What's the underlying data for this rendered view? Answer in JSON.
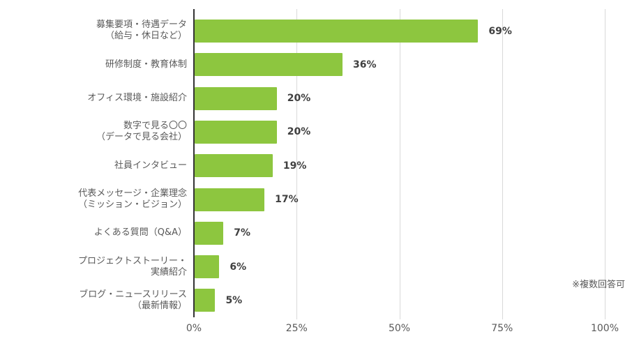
{
  "chart_data": {
    "type": "bar",
    "orientation": "horizontal",
    "categories": [
      "募集要項・待遇データ\n（給与・休日など）",
      "研修制度・教育体制",
      "オフィス環境・施設紹介",
      "数字で見る〇〇\n（データで見る会社）",
      "社員インタビュー",
      "代表メッセージ・企業理念\n（ミッション・ビジョン）",
      "よくある質問（Q&A）",
      "プロジェクトストーリー・\n実績紹介",
      "ブログ・ニュースリリース\n（最新情報）"
    ],
    "values": [
      69,
      36,
      20,
      20,
      19,
      17,
      7,
      6,
      5
    ],
    "value_labels": [
      "69%",
      "36%",
      "20%",
      "20%",
      "19%",
      "17%",
      "7%",
      "6%",
      "5%"
    ],
    "x_ticks": [
      0,
      25,
      50,
      75,
      100
    ],
    "x_tick_labels": [
      "0%",
      "25%",
      "50%",
      "75%",
      "100%"
    ],
    "xlim": [
      0,
      100
    ],
    "grid": "vertical",
    "legend": "none",
    "note": "※複数回答可",
    "colors": {
      "bar": "#8dc63f",
      "value_label": "#404040",
      "category_label": "#595959",
      "tick_label": "#595959",
      "gridline": "#d9d9d9",
      "axis_line": "#333333",
      "background": "#ffffff"
    }
  }
}
